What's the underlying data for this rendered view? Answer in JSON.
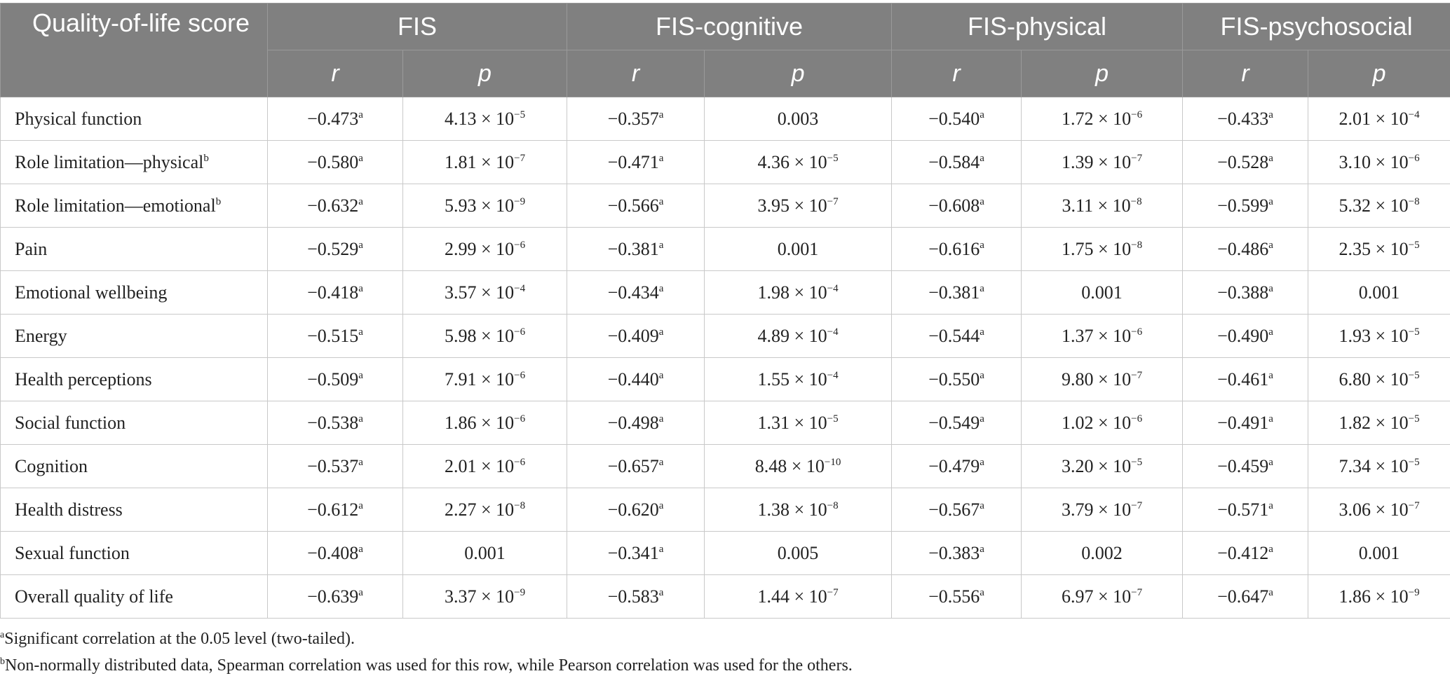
{
  "header": {
    "corner_label": "Quality-of-life score",
    "groups": [
      "FIS",
      "FIS-cognitive",
      "FIS-physical",
      "FIS-psychosocial"
    ],
    "sub_r": "r",
    "sub_p": "p"
  },
  "rows": [
    {
      "label": "Physical function",
      "label_mark": "",
      "cells": [
        {
          "r": "−0.473",
          "p": "4.13 × 10",
          "e": "−5"
        },
        {
          "r": "−0.357",
          "p": "0.003",
          "e": ""
        },
        {
          "r": "−0.540",
          "p": "1.72 × 10",
          "e": "−6"
        },
        {
          "r": "−0.433",
          "p": "2.01 × 10",
          "e": "−4"
        }
      ]
    },
    {
      "label": "Role limitation—physical",
      "label_mark": "b",
      "cells": [
        {
          "r": "−0.580",
          "p": "1.81 × 10",
          "e": "−7"
        },
        {
          "r": "−0.471",
          "p": "4.36 × 10",
          "e": "−5"
        },
        {
          "r": "−0.584",
          "p": "1.39 × 10",
          "e": "−7"
        },
        {
          "r": "−0.528",
          "p": "3.10 × 10",
          "e": "−6"
        }
      ]
    },
    {
      "label": "Role limitation—emotional",
      "label_mark": "b",
      "cells": [
        {
          "r": "−0.632",
          "p": "5.93 × 10",
          "e": "−9"
        },
        {
          "r": "−0.566",
          "p": "3.95 × 10",
          "e": "−7"
        },
        {
          "r": "−0.608",
          "p": "3.11 × 10",
          "e": "−8"
        },
        {
          "r": "−0.599",
          "p": "5.32 × 10",
          "e": "−8"
        }
      ]
    },
    {
      "label": "Pain",
      "label_mark": "",
      "cells": [
        {
          "r": "−0.529",
          "p": "2.99 × 10",
          "e": "−6"
        },
        {
          "r": "−0.381",
          "p": "0.001",
          "e": ""
        },
        {
          "r": "−0.616",
          "p": "1.75 × 10",
          "e": "−8"
        },
        {
          "r": "−0.486",
          "p": "2.35 × 10",
          "e": "−5"
        }
      ]
    },
    {
      "label": "Emotional wellbeing",
      "label_mark": "",
      "cells": [
        {
          "r": "−0.418",
          "p": "3.57 × 10",
          "e": "−4"
        },
        {
          "r": "−0.434",
          "p": "1.98 × 10",
          "e": "−4"
        },
        {
          "r": "−0.381",
          "p": "0.001",
          "e": ""
        },
        {
          "r": "−0.388",
          "p": "0.001",
          "e": ""
        }
      ]
    },
    {
      "label": "Energy",
      "label_mark": "",
      "cells": [
        {
          "r": "−0.515",
          "p": "5.98 × 10",
          "e": "−6"
        },
        {
          "r": "−0.409",
          "p": "4.89 × 10",
          "e": "−4"
        },
        {
          "r": "−0.544",
          "p": "1.37 × 10",
          "e": "−6"
        },
        {
          "r": "−0.490",
          "p": "1.93 × 10",
          "e": "−5"
        }
      ]
    },
    {
      "label": "Health perceptions",
      "label_mark": "",
      "cells": [
        {
          "r": "−0.509",
          "p": "7.91 × 10",
          "e": "−6"
        },
        {
          "r": "−0.440",
          "p": "1.55 × 10",
          "e": "−4"
        },
        {
          "r": "−0.550",
          "p": "9.80 × 10",
          "e": "−7"
        },
        {
          "r": "−0.461",
          "p": "6.80 × 10",
          "e": "−5"
        }
      ]
    },
    {
      "label": "Social function",
      "label_mark": "",
      "cells": [
        {
          "r": "−0.538",
          "p": "1.86 × 10",
          "e": "−6"
        },
        {
          "r": "−0.498",
          "p": "1.31 × 10",
          "e": "−5"
        },
        {
          "r": "−0.549",
          "p": "1.02 × 10",
          "e": "−6"
        },
        {
          "r": "−0.491",
          "p": "1.82 × 10",
          "e": "−5"
        }
      ]
    },
    {
      "label": "Cognition",
      "label_mark": "",
      "cells": [
        {
          "r": "−0.537",
          "p": "2.01 × 10",
          "e": "−6"
        },
        {
          "r": "−0.657",
          "p": "8.48 × 10",
          "e": "−10"
        },
        {
          "r": "−0.479",
          "p": "3.20 × 10",
          "e": "−5"
        },
        {
          "r": "−0.459",
          "p": "7.34 × 10",
          "e": "−5"
        }
      ]
    },
    {
      "label": "Health distress",
      "label_mark": "",
      "cells": [
        {
          "r": "−0.612",
          "p": "2.27 × 10",
          "e": "−8"
        },
        {
          "r": "−0.620",
          "p": "1.38 × 10",
          "e": "−8"
        },
        {
          "r": "−0.567",
          "p": "3.79 × 10",
          "e": "−7"
        },
        {
          "r": "−0.571",
          "p": "3.06 × 10",
          "e": "−7"
        }
      ]
    },
    {
      "label": "Sexual function",
      "label_mark": "",
      "cells": [
        {
          "r": "−0.408",
          "p": "0.001",
          "e": ""
        },
        {
          "r": "−0.341",
          "p": "0.005",
          "e": ""
        },
        {
          "r": "−0.383",
          "p": "0.002",
          "e": ""
        },
        {
          "r": "−0.412",
          "p": "0.001",
          "e": ""
        }
      ]
    },
    {
      "label": "Overall quality of life",
      "label_mark": "",
      "cells": [
        {
          "r": "−0.639",
          "p": "3.37 × 10",
          "e": "−9"
        },
        {
          "r": "−0.583",
          "p": "1.44 × 10",
          "e": "−7"
        },
        {
          "r": "−0.556",
          "p": "6.97 × 10",
          "e": "−7"
        },
        {
          "r": "−0.647",
          "p": "1.86 × 10",
          "e": "−9"
        }
      ]
    }
  ],
  "sig_mark": "a",
  "footnotes": [
    {
      "mark": "a",
      "text": "Significant correlation at the 0.05 level (two-tailed)."
    },
    {
      "mark": "b",
      "text": "Non-normally distributed data, Spearman correlation was used for this row, while Pearson correlation was used for the others."
    }
  ],
  "colors": {
    "header_bg": "#808080",
    "header_text": "#ffffff",
    "grid": "#c9c9c9",
    "text": "#222222"
  }
}
